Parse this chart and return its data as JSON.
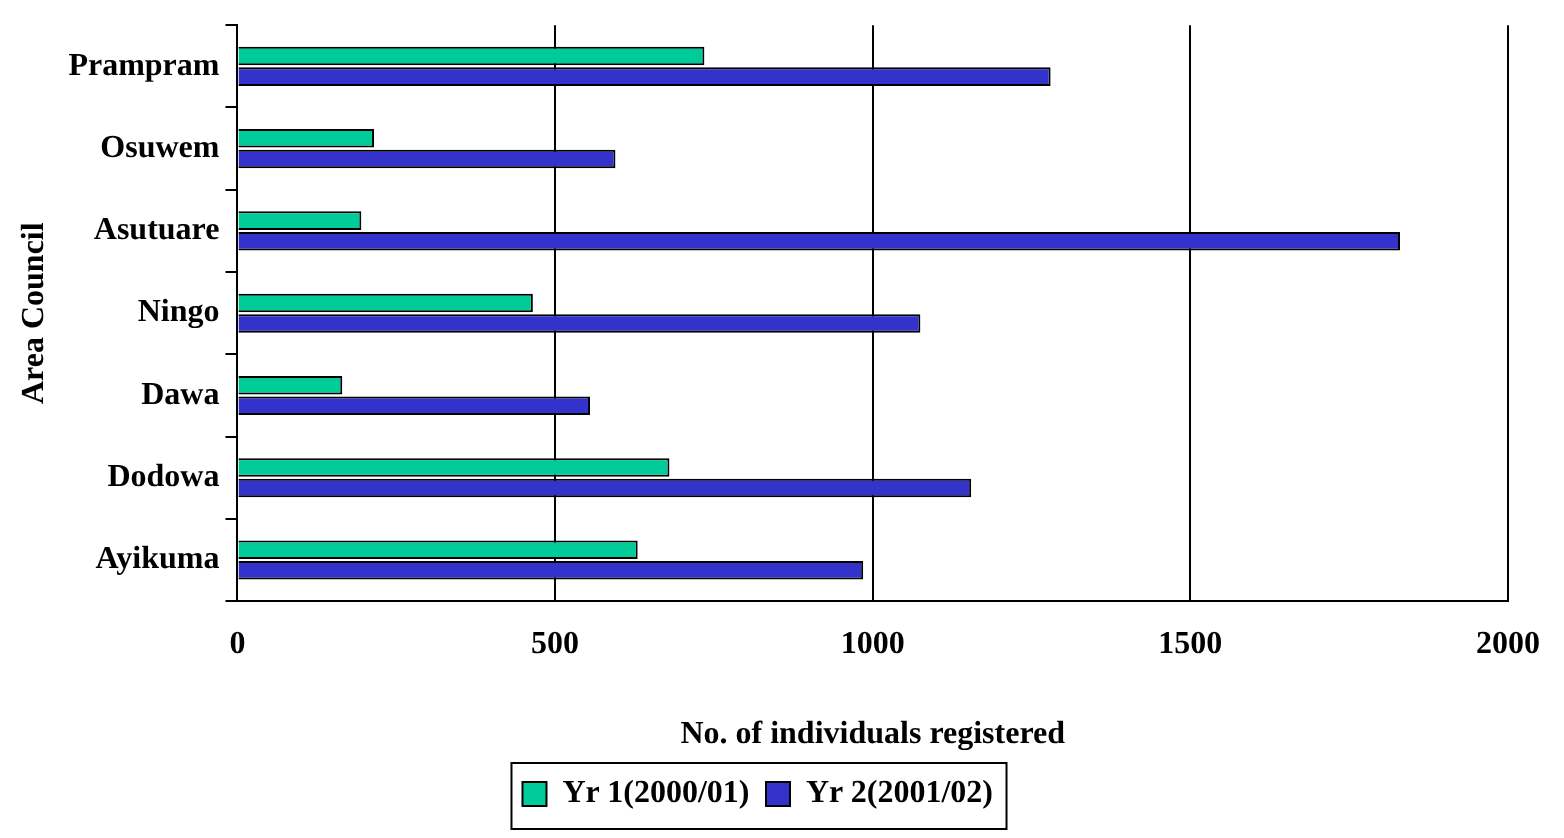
{
  "chart_data": {
    "type": "bar",
    "orientation": "horizontal",
    "xlabel": "No. of individuals registered",
    "ylabel": "Area Council",
    "categories": [
      "Prampram",
      "Osuwem",
      "Asutuare",
      "Ningo",
      "Dawa",
      "Dodowa",
      "Ayikuma"
    ],
    "series": [
      {
        "name": "Yr 1(2000/01)",
        "color": "#00cc99",
        "values": [
          735,
          215,
          195,
          465,
          165,
          680,
          630
        ]
      },
      {
        "name": "Yr 2(2001/02)",
        "color": "#3333cc",
        "values": [
          1280,
          595,
          1830,
          1075,
          555,
          1155,
          985
        ]
      }
    ],
    "xlim": [
      0,
      2000
    ],
    "xticks": [
      0,
      500,
      1000,
      1500,
      2000
    ],
    "grid": "x",
    "legend": "bottom"
  }
}
